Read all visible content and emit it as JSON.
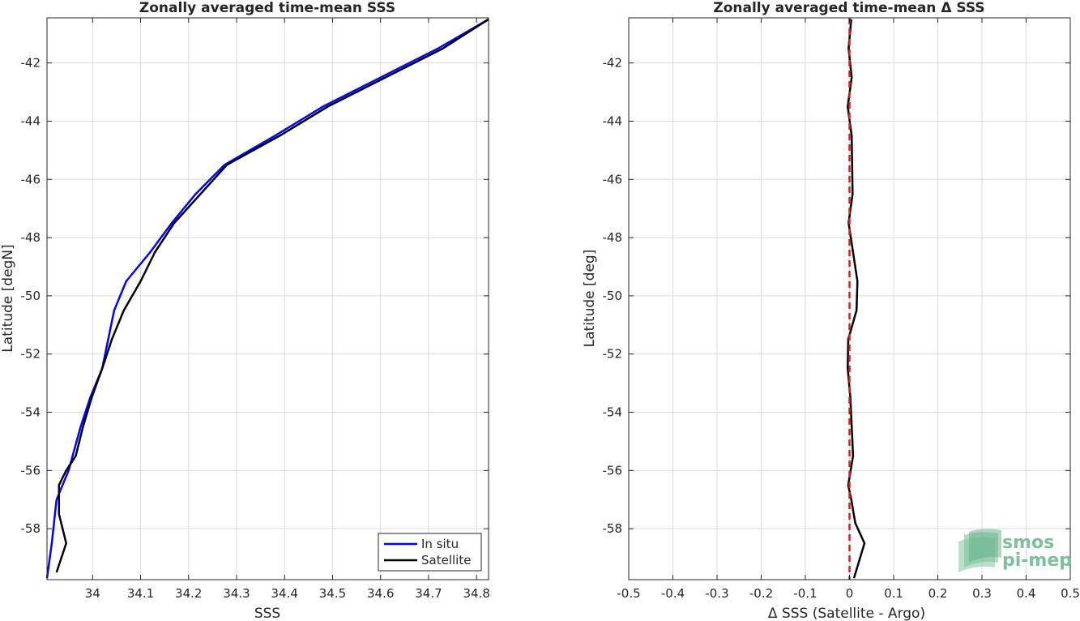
{
  "chart_data": [
    {
      "type": "line",
      "title": "Zonally averaged time-mean SSS",
      "xlabel": "SSS",
      "ylabel": "Latitude [degN]",
      "xlim": [
        33.905,
        34.825
      ],
      "ylim": [
        -59.75,
        -40.45
      ],
      "xticks": [
        34,
        34.1,
        34.2,
        34.3,
        34.4,
        34.5,
        34.6,
        34.7,
        34.8
      ],
      "xtick_labels": [
        "34",
        "34.1",
        "34.2",
        "34.3",
        "34.4",
        "34.5",
        "34.6",
        "34.7",
        "34.8"
      ],
      "yticks": [
        -42,
        -44,
        -46,
        -48,
        -50,
        -52,
        -54,
        -56,
        -58
      ],
      "ytick_labels": [
        "-42",
        "-44",
        "-46",
        "-48",
        "-50",
        "-52",
        "-54",
        "-56",
        "-58"
      ],
      "grid": true,
      "legend_position": "bottom-right",
      "series": [
        {
          "name": "In situ",
          "color": "#0000ff",
          "x": [
            34.825,
            34.72,
            34.48,
            34.38,
            34.275,
            34.215,
            34.165,
            34.12,
            34.07,
            34.045,
            34.02,
            33.995,
            33.975,
            33.95,
            33.925,
            33.915,
            33.905
          ],
          "y": [
            -40.5,
            -41.5,
            -43.5,
            -44.5,
            -45.5,
            -46.5,
            -47.5,
            -48.5,
            -49.5,
            -50.5,
            -52.5,
            -53.5,
            -54.5,
            -56.0,
            -57.0,
            -58.5,
            -59.7
          ]
        },
        {
          "name": "Satellite",
          "color": "#000000",
          "x": [
            34.825,
            34.73,
            34.49,
            34.39,
            34.28,
            34.225,
            34.17,
            34.13,
            34.1,
            34.065,
            34.04,
            34.02,
            33.998,
            33.98,
            33.965,
            33.945,
            33.93,
            33.93,
            33.945,
            33.925
          ],
          "y": [
            -40.5,
            -41.5,
            -43.5,
            -44.5,
            -45.5,
            -46.5,
            -47.5,
            -48.5,
            -49.5,
            -50.5,
            -51.5,
            -52.5,
            -53.5,
            -54.5,
            -55.5,
            -56.0,
            -56.5,
            -57.5,
            -58.5,
            -59.5
          ]
        }
      ]
    },
    {
      "type": "line",
      "title": "Zonally averaged time-mean Δ SSS",
      "xlabel": "Δ SSS (Satellite - Argo)",
      "ylabel": "Latitude [deg]",
      "xlim": [
        -0.5,
        0.5
      ],
      "ylim": [
        -59.75,
        -40.45
      ],
      "xticks": [
        -0.5,
        -0.4,
        -0.3,
        -0.2,
        -0.1,
        0,
        0.1,
        0.2,
        0.3,
        0.4,
        0.5
      ],
      "xtick_labels": [
        "-0.5",
        "-0.4",
        "-0.3",
        "-0.2",
        "-0.1",
        "0",
        "0.1",
        "0.2",
        "0.3",
        "0.4",
        "0.5"
      ],
      "yticks": [
        -42,
        -44,
        -46,
        -48,
        -50,
        -52,
        -54,
        -56,
        -58
      ],
      "ytick_labels": [
        "-42",
        "-44",
        "-46",
        "-48",
        "-50",
        "-52",
        "-54",
        "-56",
        "-58"
      ],
      "grid": true,
      "reference_line": {
        "x": 0,
        "color": "#e41a1c",
        "style": "dashed"
      },
      "series": [
        {
          "color": "#000000",
          "x": [
            0.004,
            -0.002,
            0.005,
            -0.004,
            0.005,
            0.007,
            -0.002,
            0.018,
            0.016,
            -0.003,
            -0.004,
            0.002,
            0.008,
            -0.003,
            0.004,
            0.013,
            0.034,
            0.01
          ],
          "y": [
            -40.5,
            -41.5,
            -42.5,
            -43.5,
            -44.5,
            -46.5,
            -47.5,
            -49.5,
            -50.5,
            -51.5,
            -52.5,
            -53.5,
            -55.5,
            -56.5,
            -57.0,
            -57.8,
            -58.5,
            -59.7
          ]
        }
      ]
    }
  ],
  "logo": {
    "line1": "smos",
    "line2": "pi-mep"
  }
}
